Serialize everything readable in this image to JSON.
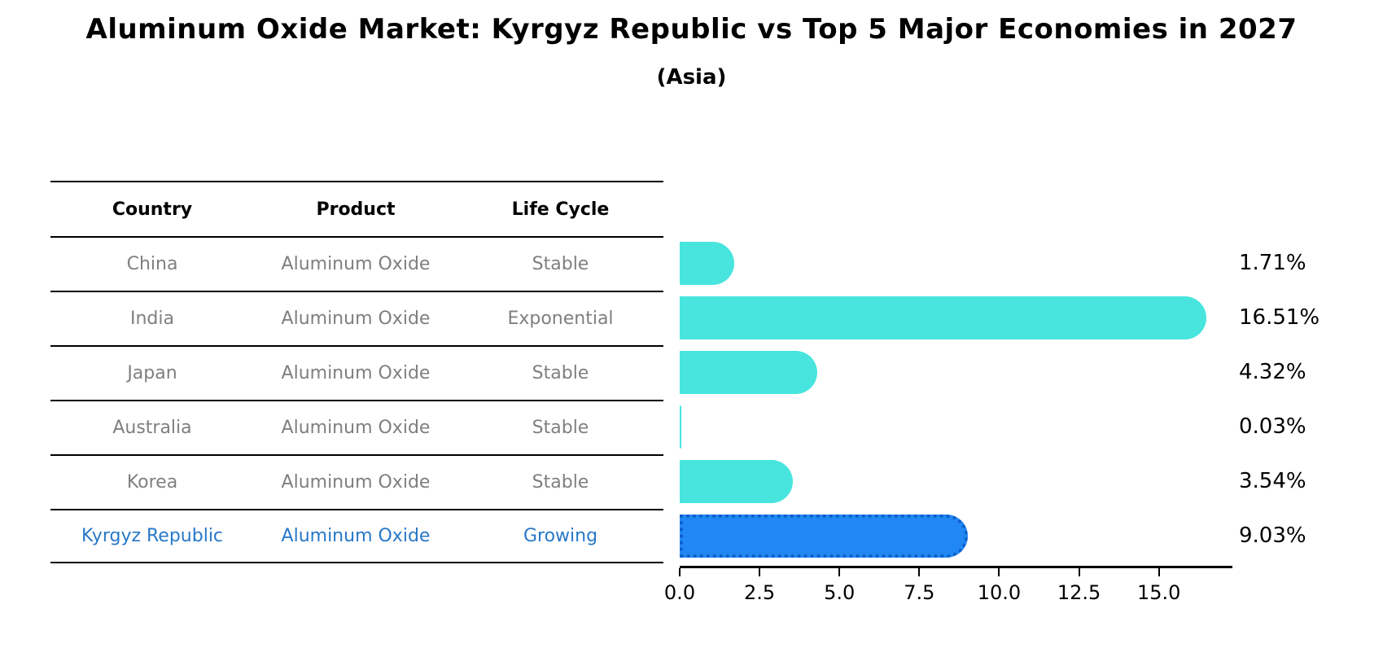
{
  "title": "Aluminum Oxide Market: Kyrgyz Republic vs Top 5 Major Economies in 2027",
  "subtitle": "(Asia)",
  "table": {
    "headers": [
      "Country",
      "Product",
      "Life Cycle"
    ],
    "rows": [
      {
        "country": "China",
        "product": "Aluminum Oxide",
        "life_cycle": "Stable",
        "highlight": false
      },
      {
        "country": "India",
        "product": "Aluminum Oxide",
        "life_cycle": "Exponential",
        "highlight": false
      },
      {
        "country": "Japan",
        "product": "Aluminum Oxide",
        "life_cycle": "Stable",
        "highlight": false
      },
      {
        "country": "Australia",
        "product": "Aluminum Oxide",
        "life_cycle": "Stable",
        "highlight": false
      },
      {
        "country": "Korea",
        "product": "Aluminum Oxide",
        "life_cycle": "Stable",
        "highlight": false
      },
      {
        "country": "Kyrgyz Republic",
        "product": "Aluminum Oxide",
        "life_cycle": "Growing",
        "highlight": true
      }
    ]
  },
  "chart_data": {
    "type": "bar",
    "orientation": "horizontal",
    "title": "Aluminum Oxide Market: Kyrgyz Republic vs Top 5 Major Economies in 2027 (Asia)",
    "categories": [
      "China",
      "India",
      "Japan",
      "Australia",
      "Korea",
      "Kyrgyz Republic"
    ],
    "values": [
      1.71,
      16.51,
      4.32,
      0.03,
      3.54,
      9.03
    ],
    "value_labels": [
      "1.71%",
      "16.51%",
      "4.32%",
      "0.03%",
      "3.54%",
      "9.03%"
    ],
    "xlabel": "",
    "ylabel": "",
    "xlim": [
      0,
      17.3
    ],
    "x_ticks": [
      0.0,
      2.5,
      5.0,
      7.5,
      10.0,
      12.5,
      15.0
    ],
    "x_tick_labels": [
      "0.0",
      "2.5",
      "5.0",
      "7.5",
      "10.0",
      "12.5",
      "15.0"
    ],
    "grid": false,
    "legend": false,
    "bar_color": "#47e5de",
    "highlight_index": 5,
    "highlight_color": "#2187f2",
    "highlight_edge_color": "#0d5ec9"
  },
  "colors": {
    "row_text": "#7f7f7f",
    "header_text": "#000000",
    "highlight_text": "#2878c8",
    "axis": "#000000"
  }
}
